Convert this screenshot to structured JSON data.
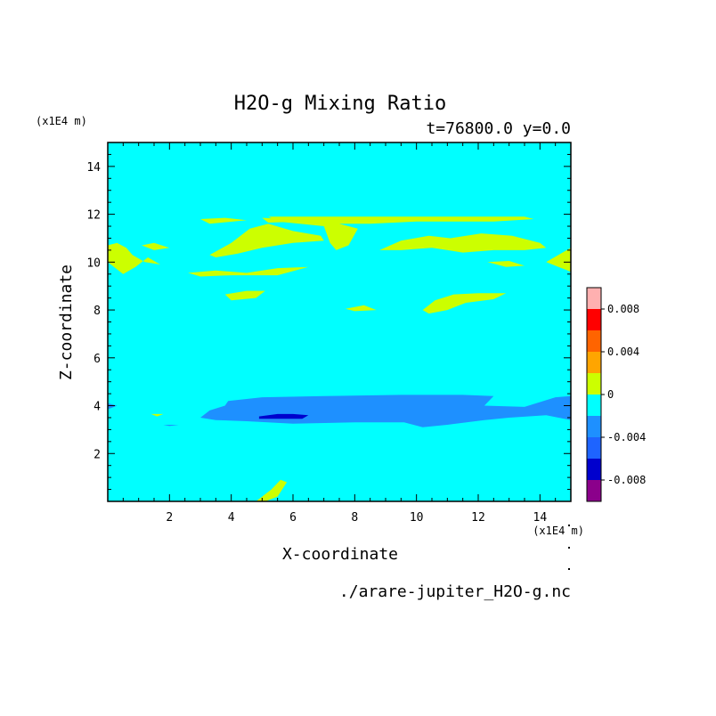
{
  "chart_data": {
    "type": "heatmap",
    "title": "H2O-g Mixing Ratio",
    "subtitle": "t=76800.0 y=0.0",
    "xlabel": "X-coordinate",
    "ylabel": "Z-coordinate",
    "x_unit": "(x1E4 m)",
    "y_unit": "(x1E4 m)",
    "source_file": "./arare-jupiter_H2O-g.nc",
    "xlim": [
      0,
      15
    ],
    "ylim": [
      0,
      15
    ],
    "x_ticks": [
      2,
      4,
      6,
      8,
      10,
      12,
      14
    ],
    "y_ticks": [
      2,
      4,
      6,
      8,
      10,
      12,
      14
    ],
    "background_color": "#00ffff",
    "levels": [
      {
        "min": -0.01,
        "max": -0.008,
        "color": "#8b008b"
      },
      {
        "min": -0.008,
        "max": -0.006,
        "color": "#0000cd"
      },
      {
        "min": -0.006,
        "max": -0.004,
        "color": "#1e64ff"
      },
      {
        "min": -0.004,
        "max": -0.002,
        "color": "#1e90ff"
      },
      {
        "min": -0.002,
        "max": 0.0,
        "color": "#00ffff"
      },
      {
        "min": 0.0,
        "max": 0.002,
        "color": "#ccff00"
      },
      {
        "min": 0.002,
        "max": 0.004,
        "color": "#ffa500"
      },
      {
        "min": 0.004,
        "max": 0.006,
        "color": "#ff6400"
      },
      {
        "min": 0.006,
        "max": 0.008,
        "color": "#ff0000"
      },
      {
        "min": 0.008,
        "max": 0.01,
        "color": "#ffb0b0"
      }
    ],
    "colorbar_labels": [
      {
        "value": 0.008,
        "label": "0.008"
      },
      {
        "value": 0.004,
        "label": "0.004"
      },
      {
        "value": 0,
        "label": "0"
      },
      {
        "value": -0.004,
        "label": "-0.004"
      },
      {
        "value": -0.008,
        "label": "-0.008"
      }
    ],
    "regions": [
      {
        "level": "positive",
        "color": "#ccff00",
        "points": [
          [
            3.0,
            11.8
          ],
          [
            3.8,
            11.85
          ],
          [
            4.5,
            11.75
          ],
          [
            3.3,
            11.6
          ]
        ]
      },
      {
        "level": "positive",
        "color": "#ccff00",
        "points": [
          [
            3.3,
            10.3
          ],
          [
            4.0,
            10.8
          ],
          [
            4.6,
            11.4
          ],
          [
            5.2,
            11.6
          ],
          [
            6.0,
            11.3
          ],
          [
            6.9,
            11.1
          ],
          [
            7.0,
            10.9
          ],
          [
            6.0,
            10.8
          ],
          [
            5.0,
            10.6
          ],
          [
            4.2,
            10.35
          ],
          [
            3.5,
            10.2
          ]
        ]
      },
      {
        "level": "positive",
        "color": "#ccff00",
        "points": [
          [
            5.0,
            11.85
          ],
          [
            6.0,
            11.8
          ],
          [
            6.2,
            11.7
          ],
          [
            5.2,
            11.65
          ]
        ]
      },
      {
        "level": "positive",
        "color": "#ccff00",
        "points": [
          [
            5.2,
            11.9
          ],
          [
            13.5,
            11.9
          ],
          [
            13.8,
            11.8
          ],
          [
            12.5,
            11.7
          ],
          [
            10.0,
            11.7
          ],
          [
            8.5,
            11.6
          ],
          [
            7.5,
            11.6
          ],
          [
            8.1,
            11.4
          ],
          [
            7.8,
            10.7
          ],
          [
            7.4,
            10.5
          ],
          [
            7.2,
            10.8
          ],
          [
            7.0,
            11.5
          ],
          [
            5.5,
            11.7
          ]
        ]
      },
      {
        "level": "positive",
        "color": "#ccff00",
        "points": [
          [
            8.8,
            10.5
          ],
          [
            9.5,
            10.9
          ],
          [
            10.4,
            11.1
          ],
          [
            11.1,
            11.0
          ],
          [
            12.1,
            11.2
          ],
          [
            13.1,
            11.1
          ],
          [
            14.0,
            10.8
          ],
          [
            14.2,
            10.6
          ],
          [
            13.5,
            10.5
          ],
          [
            12.5,
            10.5
          ],
          [
            11.5,
            10.4
          ],
          [
            10.5,
            10.6
          ],
          [
            9.5,
            10.5
          ]
        ]
      },
      {
        "level": "positive",
        "color": "#ccff00",
        "points": [
          [
            0.0,
            10.7
          ],
          [
            0.3,
            10.8
          ],
          [
            0.6,
            10.6
          ],
          [
            0.8,
            10.3
          ],
          [
            1.2,
            10.0
          ],
          [
            1.7,
            9.9
          ],
          [
            1.3,
            10.2
          ],
          [
            0.9,
            9.8
          ],
          [
            0.5,
            9.5
          ],
          [
            0.1,
            9.9
          ],
          [
            0.0,
            10.0
          ]
        ]
      },
      {
        "level": "positive",
        "color": "#ccff00",
        "points": [
          [
            1.1,
            10.7
          ],
          [
            1.5,
            10.8
          ],
          [
            2.0,
            10.6
          ],
          [
            1.5,
            10.5
          ]
        ]
      },
      {
        "level": "positive",
        "color": "#ccff00",
        "points": [
          [
            2.6,
            9.55
          ],
          [
            3.5,
            9.65
          ],
          [
            4.5,
            9.55
          ],
          [
            5.5,
            9.75
          ],
          [
            6.5,
            9.8
          ],
          [
            5.5,
            9.45
          ],
          [
            4.0,
            9.45
          ],
          [
            3.0,
            9.4
          ]
        ]
      },
      {
        "level": "positive",
        "color": "#ccff00",
        "points": [
          [
            12.3,
            10.0
          ],
          [
            13.0,
            10.05
          ],
          [
            13.5,
            9.85
          ],
          [
            12.9,
            9.8
          ]
        ]
      },
      {
        "level": "positive",
        "color": "#ccff00",
        "points": [
          [
            14.2,
            10.0
          ],
          [
            14.6,
            10.3
          ],
          [
            15.0,
            10.6
          ],
          [
            15.0,
            9.6
          ],
          [
            14.6,
            9.8
          ]
        ]
      },
      {
        "level": "positive",
        "color": "#ccff00",
        "points": [
          [
            3.8,
            8.65
          ],
          [
            4.5,
            8.8
          ],
          [
            5.1,
            8.8
          ],
          [
            4.8,
            8.5
          ],
          [
            4.0,
            8.4
          ]
        ]
      },
      {
        "level": "positive",
        "color": "#ccff00",
        "points": [
          [
            7.7,
            8.05
          ],
          [
            8.3,
            8.2
          ],
          [
            8.7,
            8.0
          ],
          [
            8.0,
            7.95
          ]
        ]
      },
      {
        "level": "positive",
        "color": "#ccff00",
        "points": [
          [
            10.2,
            8.0
          ],
          [
            10.6,
            8.4
          ],
          [
            11.2,
            8.65
          ],
          [
            12.0,
            8.7
          ],
          [
            12.9,
            8.7
          ],
          [
            12.5,
            8.45
          ],
          [
            11.6,
            8.3
          ],
          [
            11.0,
            8.0
          ],
          [
            10.4,
            7.85
          ]
        ]
      },
      {
        "level": "positive",
        "color": "#ccff00",
        "points": [
          [
            1.4,
            3.65
          ],
          [
            1.8,
            3.65
          ],
          [
            1.6,
            3.55
          ]
        ]
      },
      {
        "level": "positive",
        "color": "#ccff00",
        "points": [
          [
            4.8,
            0.0
          ],
          [
            5.3,
            0.5
          ],
          [
            5.6,
            0.9
          ],
          [
            5.8,
            0.8
          ],
          [
            5.5,
            0.2
          ],
          [
            5.1,
            0.0
          ]
        ]
      },
      {
        "level": "negative",
        "color": "#1e90ff",
        "points": [
          [
            3.0,
            3.5
          ],
          [
            3.3,
            3.8
          ],
          [
            3.8,
            4.0
          ],
          [
            3.9,
            4.2
          ],
          [
            5.0,
            4.35
          ],
          [
            7.0,
            4.4
          ],
          [
            9.5,
            4.45
          ],
          [
            11.5,
            4.45
          ],
          [
            12.5,
            4.4
          ],
          [
            12.2,
            4.0
          ],
          [
            13.5,
            3.95
          ],
          [
            14.5,
            4.35
          ],
          [
            15.0,
            4.4
          ],
          [
            15.0,
            3.4
          ],
          [
            14.2,
            3.6
          ],
          [
            13.0,
            3.5
          ],
          [
            12.2,
            3.4
          ],
          [
            11.0,
            3.2
          ],
          [
            10.2,
            3.1
          ],
          [
            9.6,
            3.3
          ],
          [
            8.0,
            3.3
          ],
          [
            6.0,
            3.25
          ],
          [
            4.5,
            3.35
          ],
          [
            3.5,
            3.4
          ]
        ]
      },
      {
        "level": "negative",
        "color": "#0000cd",
        "points": [
          [
            4.9,
            3.55
          ],
          [
            5.5,
            3.65
          ],
          [
            6.0,
            3.65
          ],
          [
            6.5,
            3.6
          ],
          [
            6.3,
            3.45
          ],
          [
            5.5,
            3.45
          ],
          [
            4.9,
            3.45
          ]
        ]
      },
      {
        "level": "negative",
        "color": "#1e90ff",
        "points": [
          [
            0.0,
            4.1
          ],
          [
            0.3,
            4.0
          ],
          [
            0.0,
            3.85
          ]
        ]
      },
      {
        "level": "negative",
        "color": "#1e90ff",
        "points": [
          [
            1.8,
            3.2
          ],
          [
            2.3,
            3.2
          ],
          [
            2.0,
            3.15
          ]
        ]
      }
    ]
  }
}
